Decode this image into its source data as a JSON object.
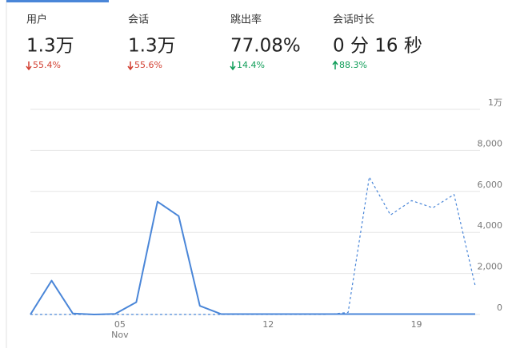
{
  "metrics": [
    {
      "label": "用户",
      "value": "1.3万",
      "change": "55.4%",
      "color": "#d23f31"
    },
    {
      "label": "会话",
      "value": "1.3万",
      "change": "55.6%",
      "color": "#d23f31"
    },
    {
      "label": "跳出率",
      "value": "77.08%",
      "change": "14.4%",
      "color": "#0f9d58"
    },
    {
      "label": "会话时长",
      "value": "0 分 16 秒",
      "change": "88.3%",
      "color": "#0f9d58"
    }
  ],
  "chart_data": {
    "type": "line",
    "categories": [
      null,
      null,
      null,
      null,
      "05",
      null,
      null,
      null,
      null,
      null,
      null,
      "12",
      null,
      null,
      null,
      null,
      null,
      null,
      "19",
      null,
      null,
      null
    ],
    "x_sublabel": "Nov",
    "series": [
      {
        "color": "#4a86d8",
        "dash": false,
        "values": [
          0,
          1650,
          50,
          0,
          30,
          600,
          5500,
          4800,
          420,
          20,
          20,
          20,
          20,
          20,
          20,
          20,
          20,
          20,
          20,
          20,
          20,
          20
        ]
      },
      {
        "color": "#4a86d8",
        "dash": true,
        "values": [
          0,
          0,
          0,
          0,
          0,
          0,
          0,
          0,
          0,
          0,
          0,
          0,
          0,
          0,
          0,
          100,
          6700,
          4850,
          5550,
          5200,
          5850,
          1400
        ]
      }
    ],
    "ylim": [
      0,
      10000
    ],
    "yticks": [
      0,
      {
        "value": 2000,
        "label": "2,000"
      },
      {
        "value": 4000,
        "label": "4,000"
      },
      {
        "value": 6000,
        "label": "6,000"
      },
      {
        "value": 8000,
        "label": "8,000"
      },
      {
        "value": 10000,
        "label": "1万"
      }
    ],
    "grid": true
  }
}
